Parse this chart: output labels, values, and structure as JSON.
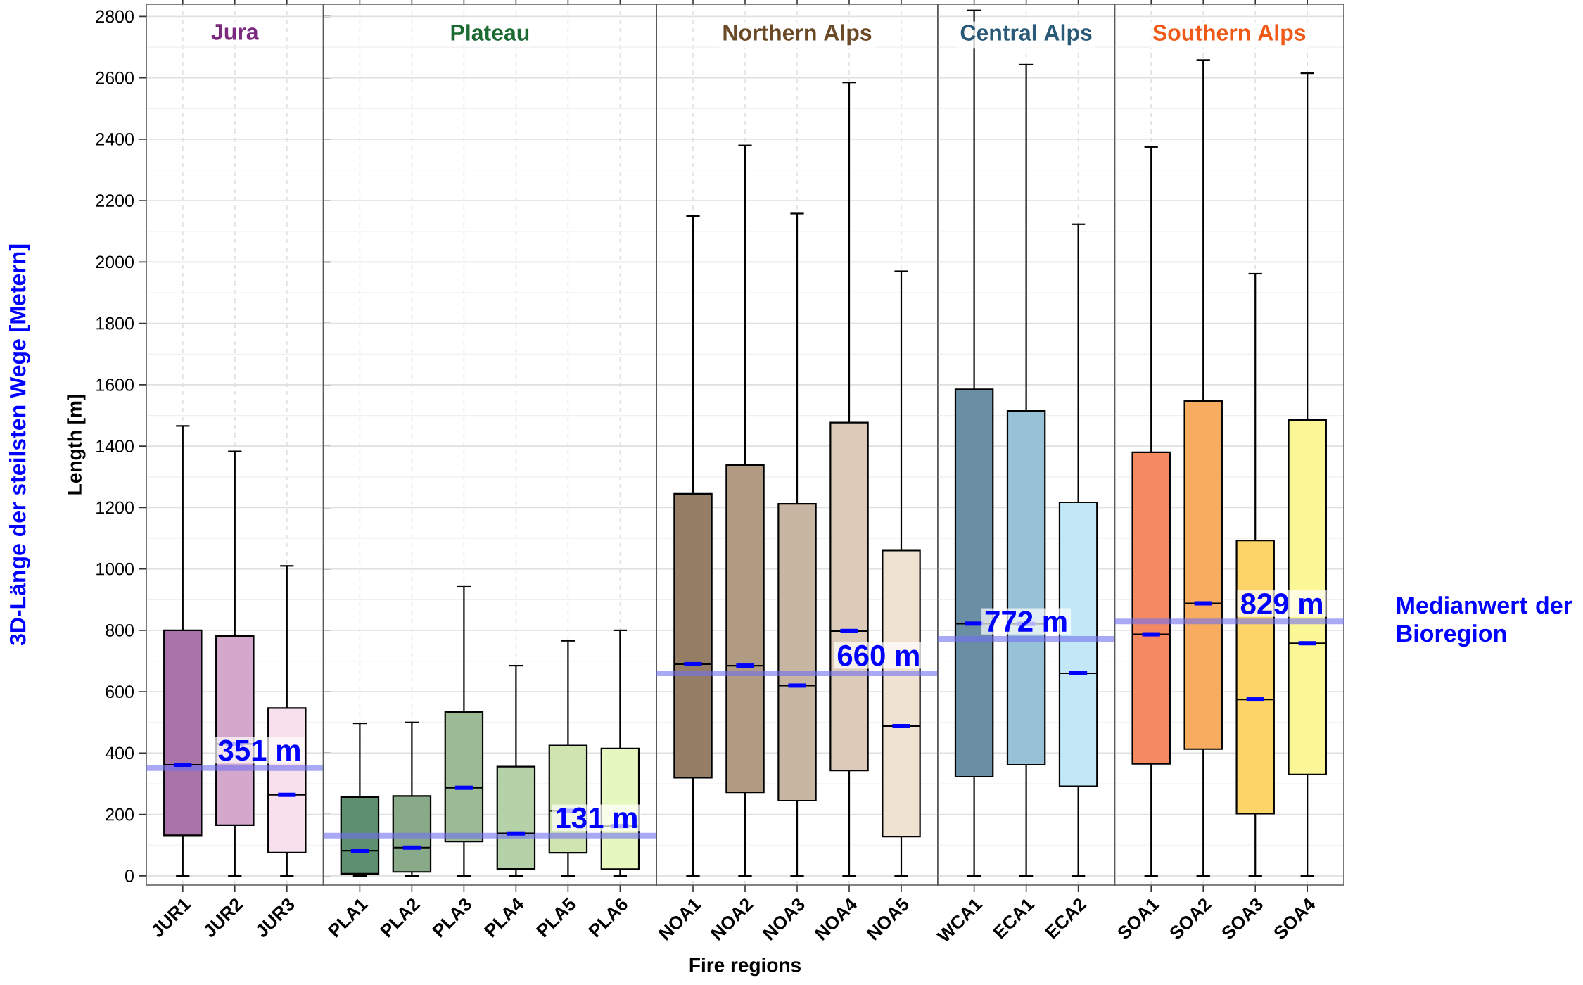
{
  "chart_data": [
    {
      "type": "box",
      "title": "Jura",
      "ylabel": "Length [m]",
      "categories": [
        "JUR1",
        "JUR2",
        "JUR3"
      ],
      "colors": [
        "#a873a8",
        "#d4a8cc",
        "#f7e0ec"
      ],
      "boxes": [
        {
          "low": 0,
          "q1": 132,
          "median": 362,
          "q3": 800,
          "high": 1466
        },
        {
          "low": 0,
          "q1": 165,
          "median": 430,
          "q3": 781,
          "high": 1383
        },
        {
          "low": 0,
          "q1": 76,
          "median": 264,
          "q3": 547,
          "high": 1010
        }
      ],
      "ylim": [
        -30,
        2840
      ],
      "yticks": [
        0,
        200,
        400,
        600,
        800,
        1000,
        1200,
        1400,
        1600,
        1800,
        2000,
        2200,
        2400,
        2600,
        2800
      ],
      "grid": true,
      "ref_lines": [
        {
          "axis": "y",
          "value": 351,
          "label": "351 m",
          "color": "#7070f0"
        }
      ],
      "annotations": [
        "3D-Länge der steilsten Wege [Metern]"
      ]
    },
    {
      "type": "box",
      "title": "Plateau",
      "categories": [
        "PLA1",
        "PLA2",
        "PLA3",
        "PLA4",
        "PLA5",
        "PLA6"
      ],
      "colors": [
        "#5e8f6e",
        "#88aa88",
        "#9cbb95",
        "#b5d1a8",
        "#d0e4b0",
        "#e6f7c0"
      ],
      "boxes": [
        {
          "low": 0,
          "q1": 7,
          "median": 82,
          "q3": 257,
          "high": 497
        },
        {
          "low": 0,
          "q1": 13,
          "median": 92,
          "q3": 260,
          "high": 500
        },
        {
          "low": 0,
          "q1": 112,
          "median": 287,
          "q3": 534,
          "high": 942
        },
        {
          "low": 0,
          "q1": 23,
          "median": 138,
          "q3": 356,
          "high": 685
        },
        {
          "low": 0,
          "q1": 75,
          "median": 212,
          "q3": 425,
          "high": 766
        },
        {
          "low": 0,
          "q1": 22,
          "median": 162,
          "q3": 415,
          "high": 800
        }
      ],
      "ylim": [
        -30,
        2840
      ],
      "yticks": [
        0,
        200,
        400,
        600,
        800,
        1000,
        1200,
        1400,
        1600,
        1800,
        2000,
        2200,
        2400,
        2600,
        2800
      ],
      "grid": true,
      "tick_labels": "x",
      "ref_lines": [
        {
          "axis": "y",
          "value": 131,
          "label": "131 m",
          "color": "#7070f0"
        }
      ]
    },
    {
      "type": "box",
      "title": "Northern Alps",
      "xlabel": "Fire regions",
      "categories": [
        "NOA1",
        "NOA2",
        "NOA3",
        "NOA4",
        "NOA5"
      ],
      "colors": [
        "#967d66",
        "#b09a82",
        "#c8b5a2",
        "#dccbb8",
        "#f0e2d0"
      ],
      "boxes": [
        {
          "low": 0,
          "q1": 320,
          "median": 690,
          "q3": 1245,
          "high": 2150
        },
        {
          "low": 0,
          "q1": 272,
          "median": 685,
          "q3": 1338,
          "high": 2380
        },
        {
          "low": 0,
          "q1": 245,
          "median": 620,
          "q3": 1212,
          "high": 2158
        },
        {
          "low": 0,
          "q1": 343,
          "median": 798,
          "q3": 1477,
          "high": 2585
        },
        {
          "low": 0,
          "q1": 128,
          "median": 488,
          "q3": 1060,
          "high": 1970
        }
      ],
      "ylim": [
        -30,
        2840
      ],
      "yticks": [
        0,
        200,
        400,
        600,
        800,
        1000,
        1200,
        1400,
        1600,
        1800,
        2000,
        2200,
        2400,
        2600,
        2800
      ],
      "grid": true,
      "tick_labels": "x",
      "ref_lines": [
        {
          "axis": "y",
          "value": 660,
          "label": "660 m",
          "color": "#7070f0"
        }
      ]
    },
    {
      "type": "box",
      "title": "Central Alps",
      "categories": [
        "WCA1",
        "ECA1",
        "ECA2"
      ],
      "colors": [
        "#6a8fa4",
        "#96c1d6",
        "#c2e8f8"
      ],
      "boxes": [
        {
          "low": 0,
          "q1": 323,
          "median": 822,
          "q3": 1585,
          "high": 2820
        },
        {
          "low": 0,
          "q1": 362,
          "median": 821,
          "q3": 1515,
          "high": 2643
        },
        {
          "low": 0,
          "q1": 292,
          "median": 660,
          "q3": 1217,
          "high": 2123
        }
      ],
      "ylim": [
        -30,
        2840
      ],
      "yticks": [
        0,
        200,
        400,
        600,
        800,
        1000,
        1200,
        1400,
        1600,
        1800,
        2000,
        2200,
        2400,
        2600,
        2800
      ],
      "grid": true,
      "tick_labels": "x",
      "ref_lines": [
        {
          "axis": "y",
          "value": 772,
          "label": "772 m",
          "color": "#7070f0"
        }
      ]
    },
    {
      "type": "box",
      "title": "Southern Alps",
      "categories": [
        "SOA1",
        "SOA2",
        "SOA3",
        "SOA4"
      ],
      "colors": [
        "#f58a62",
        "#f8ac60",
        "#fcd468",
        "#fcf796"
      ],
      "boxes": [
        {
          "low": 0,
          "q1": 365,
          "median": 787,
          "q3": 1380,
          "high": 2375
        },
        {
          "low": 0,
          "q1": 413,
          "median": 888,
          "q3": 1547,
          "high": 2658
        },
        {
          "low": 0,
          "q1": 203,
          "median": 575,
          "q3": 1093,
          "high": 1962
        },
        {
          "low": 0,
          "q1": 330,
          "median": 758,
          "q3": 1485,
          "high": 2615
        }
      ],
      "ylim": [
        -30,
        2840
      ],
      "yticks": [
        0,
        200,
        400,
        600,
        800,
        1000,
        1200,
        1400,
        1600,
        1800,
        2000,
        2200,
        2400,
        2600,
        2800
      ],
      "grid": true,
      "tick_labels": "x",
      "ref_lines": [
        {
          "axis": "y",
          "value": 829,
          "label": "829 m",
          "color": "#7070f0"
        }
      ],
      "annotations": [
        "Medianwert der Bioregion"
      ]
    }
  ]
}
